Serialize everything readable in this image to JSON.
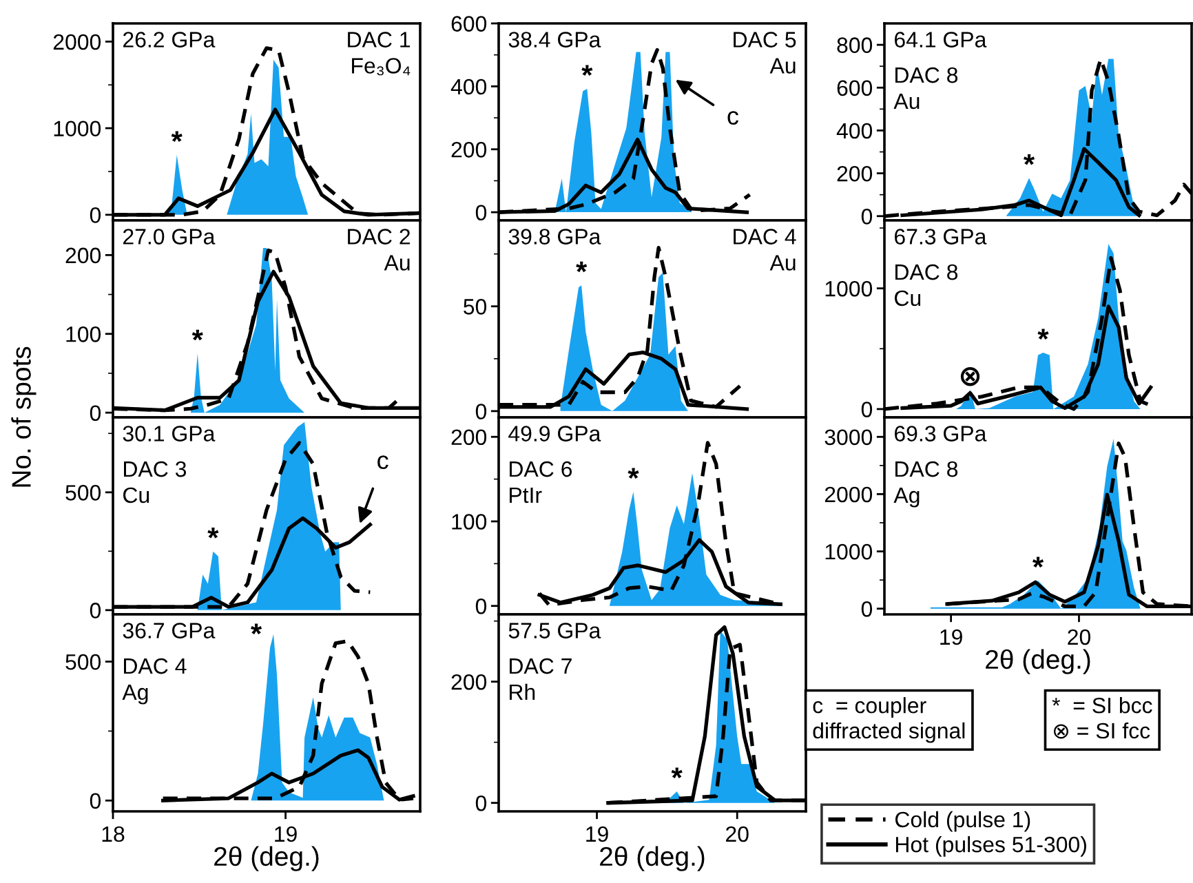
{
  "chart_data": [
    {
      "type": "line",
      "title": "26.2 GPa",
      "subtitle": "DAC 1\nFe₃O₄",
      "xlim": [
        18,
        19.78
      ],
      "xticks": [
        18,
        19
      ],
      "ylim": [
        -65,
        2210
      ],
      "yticks": [
        0,
        {
          "value": 500,
          "label": null
        },
        1000,
        {
          "value": 1500,
          "label": null
        },
        2000
      ],
      "tick_labels": "y",
      "annotations": [
        {
          "text": "*",
          "x": 18.37,
          "y": 690
        }
      ],
      "series": [
        {
          "type": "area",
          "color": "#18a3f0",
          "x": [
            18.3,
            18.34,
            18.37,
            18.4,
            18.43,
            18.66,
            18.72,
            18.78,
            18.8,
            18.82,
            18.86,
            18.9,
            18.93,
            18.96,
            18.99,
            19.03,
            19.06,
            19.1,
            19.13
          ],
          "values": [
            0,
            100,
            690,
            300,
            0,
            0,
            400,
            700,
            1170,
            600,
            640,
            560,
            1790,
            1700,
            900,
            900,
            445,
            200,
            0
          ]
        },
        {
          "type": "line",
          "line_style": "dashed",
          "color": "#000000",
          "x": [
            18.0,
            18.4,
            18.52,
            18.62,
            18.73,
            18.81,
            18.89,
            18.96,
            19.02,
            19.1,
            19.21,
            19.32,
            19.42,
            19.55,
            19.78
          ],
          "values": [
            0,
            0,
            40,
            230,
            875,
            1630,
            1925,
            1900,
            1415,
            660,
            365,
            180,
            15,
            0,
            20
          ]
        },
        {
          "type": "line",
          "line_style": "solid",
          "color": "#000000",
          "x": [
            18.0,
            18.3,
            18.38,
            18.49,
            18.68,
            18.81,
            18.94,
            19.08,
            19.21,
            19.34,
            19.48,
            19.78
          ],
          "values": [
            0,
            0,
            190,
            100,
            285,
            715,
            1215,
            715,
            230,
            40,
            0,
            20
          ]
        }
      ]
    },
    {
      "type": "line",
      "title": "27.0 GPa",
      "subtitle": "DAC 2\nAu",
      "ylabel": "No. of spots",
      "xlim": [
        18,
        19.78
      ],
      "xticks": [
        18,
        19
      ],
      "ylim": [
        -6,
        244
      ],
      "yticks": [
        0,
        {
          "value": 50,
          "label": null
        },
        100,
        {
          "value": 150,
          "label": null
        },
        200
      ],
      "tick_labels": "y",
      "annotations": [
        {
          "text": "*",
          "x": 18.49,
          "y": 75
        }
      ],
      "series": [
        {
          "type": "area",
          "color": "#18a3f0",
          "x": [
            18.45,
            18.47,
            18.49,
            18.51,
            18.53,
            18.62,
            18.74,
            18.83,
            18.87,
            18.89,
            18.92,
            18.94,
            18.95,
            18.97,
            19.02,
            19.11
          ],
          "values": [
            0,
            20,
            75,
            20,
            0,
            10,
            47,
            112,
            209,
            209,
            170,
            53,
            144,
            41,
            18,
            0
          ]
        },
        {
          "type": "line",
          "line_style": "dashed",
          "color": "#000000",
          "x": [
            18.0,
            18.3,
            18.45,
            18.55,
            18.67,
            18.78,
            18.84,
            18.9,
            18.94,
            19.0,
            19.08,
            19.21,
            19.4,
            19.6,
            19.66
          ],
          "values": [
            5,
            3,
            5,
            10,
            18,
            88,
            147,
            206,
            203,
            159,
            71,
            18,
            6,
            6,
            18
          ]
        },
        {
          "type": "line",
          "line_style": "solid",
          "color": "#000000",
          "x": [
            18.0,
            18.3,
            18.49,
            18.62,
            18.73,
            18.84,
            18.93,
            19.02,
            19.16,
            19.32,
            19.48,
            19.78
          ],
          "values": [
            6,
            3,
            19,
            19,
            41,
            141,
            179,
            147,
            59,
            12,
            6,
            6
          ]
        }
      ]
    },
    {
      "type": "line",
      "title": "30.1 GPa",
      "subtitle": "DAC 3\nCu",
      "xlim": [
        18,
        19.78
      ],
      "xticks": [
        18,
        19
      ],
      "ylim": [
        -18,
        818
      ],
      "yticks": [
        0,
        {
          "value": 250,
          "label": null
        },
        500,
        {
          "value": 750,
          "label": null
        }
      ],
      "tick_labels": "y",
      "annotations": [
        {
          "text": "*",
          "x": 18.58,
          "y": 249
        },
        {
          "text": "c",
          "x": 19.43,
          "y": 367
        }
      ],
      "series": [
        {
          "type": "area",
          "color": "#18a3f0",
          "x": [
            18.49,
            18.52,
            18.55,
            18.58,
            18.61,
            18.63,
            18.83,
            18.89,
            18.95,
            18.99,
            19.07,
            19.11,
            19.15,
            19.2,
            19.23,
            19.28,
            19.31,
            19.32
          ],
          "values": [
            0,
            151,
            112,
            249,
            228,
            0,
            33,
            229,
            425,
            700,
            778,
            798,
            523,
            327,
            249,
            288,
            288,
            0
          ]
        },
        {
          "type": "line",
          "line_style": "dashed",
          "color": "#000000",
          "x": [
            18.0,
            18.67,
            18.78,
            18.89,
            19.0,
            19.08,
            19.16,
            19.24,
            19.32,
            19.4,
            19.49
          ],
          "values": [
            14,
            14,
            112,
            425,
            640,
            710,
            620,
            327,
            141,
            82,
            76
          ]
        },
        {
          "type": "line",
          "line_style": "solid",
          "color": "#000000",
          "x": [
            18.0,
            18.46,
            18.57,
            18.67,
            18.78,
            18.92,
            19.02,
            19.1,
            19.18,
            19.29,
            19.37,
            19.49
          ],
          "values": [
            14,
            14,
            53,
            14,
            33,
            170,
            347,
            390,
            347,
            265,
            288,
            363
          ]
        }
      ]
    },
    {
      "type": "line",
      "title": "36.7 GPa",
      "subtitle": "DAC 4\nAg",
      "xlabel": "2θ (deg.)",
      "xlim": [
        18,
        19.78
      ],
      "xticks": [
        18,
        19
      ],
      "ylim": [
        -39,
        670
      ],
      "yticks": [
        0,
        {
          "value": 250,
          "label": null
        },
        500
      ],
      "annotations": [
        {
          "text": "*",
          "x": 18.93,
          "y": 599
        }
      ],
      "series": [
        {
          "type": "area",
          "color": "#18a3f0",
          "x": [
            18.8,
            18.84,
            18.87,
            18.91,
            18.93,
            18.95,
            18.98,
            19.02,
            19.1,
            19.11,
            19.16,
            19.19,
            19.21,
            19.25,
            19.29,
            19.34,
            19.39,
            19.43,
            19.49,
            19.53,
            19.57
          ],
          "values": [
            0,
            97,
            275,
            550,
            599,
            453,
            65,
            30,
            10,
            227,
            372,
            258,
            227,
            307,
            227,
            299,
            299,
            243,
            227,
            129,
            0
          ]
        },
        {
          "type": "line",
          "line_style": "dashed",
          "color": "#000000",
          "x": [
            18.29,
            18.94,
            19.08,
            19.16,
            19.21,
            19.29,
            19.36,
            19.42,
            19.48,
            19.53,
            19.58,
            19.66,
            19.74
          ],
          "values": [
            8,
            8,
            49,
            162,
            421,
            566,
            574,
            518,
            421,
            227,
            65,
            3,
            8
          ]
        },
        {
          "type": "line",
          "line_style": "solid",
          "color": "#000000",
          "x": [
            18.29,
            18.67,
            18.84,
            18.92,
            19.02,
            19.16,
            19.32,
            19.42,
            19.48,
            19.56,
            19.66,
            19.74
          ],
          "values": [
            0,
            8,
            65,
            97,
            65,
            97,
            162,
            181,
            154,
            49,
            3,
            16
          ]
        }
      ]
    },
    {
      "type": "line",
      "title": "38.4 GPa",
      "subtitle": "DAC 5\nAu",
      "xlim": [
        18.3,
        20.49
      ],
      "xticks": [
        19,
        20
      ],
      "ylim": [
        -26,
        600
      ],
      "yticks": [
        0,
        {
          "value": 100,
          "label": null
        },
        200,
        {
          "value": 300,
          "label": null
        },
        400,
        {
          "value": 500,
          "label": null
        },
        600
      ],
      "tick_labels": "y",
      "annotations": [
        {
          "text": "*",
          "x": 18.93,
          "y": 392
        },
        {
          "text": "c",
          "x": 19.56,
          "y": 421
        }
      ],
      "series": [
        {
          "type": "area",
          "color": "#18a3f0",
          "x": [
            18.7,
            18.75,
            18.78,
            18.84,
            18.9,
            18.93,
            18.96,
            18.99,
            19.03,
            19.21,
            19.28,
            19.31,
            19.34,
            19.39,
            19.46,
            19.49,
            19.52,
            19.55,
            19.59,
            19.68
          ],
          "values": [
            0,
            107,
            0,
            224,
            385,
            392,
            253,
            30,
            10,
            268,
            509,
            509,
            253,
            48,
            238,
            509,
            509,
            165,
            30,
            0
          ]
        },
        {
          "type": "line",
          "line_style": "dashed",
          "color": "#000000",
          "x": [
            18.3,
            18.8,
            18.93,
            19.13,
            19.26,
            19.33,
            19.39,
            19.43,
            19.47,
            19.52,
            19.59,
            19.68,
            19.95,
            20.09
          ],
          "values": [
            0,
            12,
            26,
            63,
            107,
            297,
            472,
            516,
            458,
            268,
            63,
            4,
            12,
            56
          ]
        },
        {
          "type": "line",
          "line_style": "solid",
          "color": "#000000",
          "x": [
            18.3,
            18.7,
            18.8,
            18.92,
            19.03,
            19.16,
            19.29,
            19.39,
            19.49,
            19.56,
            19.65,
            20.07
          ],
          "values": [
            0,
            4,
            26,
            85,
            63,
            121,
            231,
            136,
            77,
            63,
            12,
            0
          ]
        }
      ]
    },
    {
      "type": "line",
      "title": "39.8 GPa",
      "subtitle": "DAC 4\nAu",
      "xlim": [
        18.3,
        20.49
      ],
      "xticks": [
        19,
        20
      ],
      "ylim": [
        -3,
        91
      ],
      "yticks": [
        0,
        {
          "value": 25,
          "label": null
        },
        50,
        {
          "value": 75,
          "label": null
        }
      ],
      "tick_labels": "y",
      "annotations": [
        {
          "text": "*",
          "x": 18.89,
          "y": 60
        }
      ],
      "series": [
        {
          "type": "area",
          "color": "#18a3f0",
          "x": [
            18.74,
            18.8,
            18.87,
            18.89,
            18.92,
            18.97,
            19.03,
            19.11,
            19.2,
            19.29,
            19.38,
            19.44,
            19.47,
            19.51,
            19.56,
            19.6,
            19.65
          ],
          "values": [
            2,
            29,
            59,
            60,
            38,
            20,
            3,
            0,
            5,
            16,
            27,
            64,
            66,
            27,
            31,
            5,
            0
          ]
        },
        {
          "type": "line",
          "line_style": "dashed",
          "color": "#000000",
          "x": [
            18.3,
            18.8,
            18.9,
            19.0,
            19.2,
            19.29,
            19.36,
            19.41,
            19.44,
            19.49,
            19.59,
            19.67,
            19.85,
            20.02
          ],
          "values": [
            3,
            3,
            14,
            9,
            9,
            16,
            29,
            64,
            78,
            64,
            29,
            5,
            2,
            12
          ]
        },
        {
          "type": "line",
          "line_style": "solid",
          "color": "#000000",
          "x": [
            18.3,
            18.67,
            18.8,
            18.92,
            19.05,
            19.23,
            19.33,
            19.46,
            19.56,
            19.65,
            20.07
          ],
          "values": [
            2,
            2,
            7,
            20,
            13,
            27,
            28,
            25,
            20,
            3,
            1
          ]
        }
      ]
    },
    {
      "type": "line",
      "title": "49.9 GPa",
      "subtitle": "DAC 6\nPtIr",
      "xlim": [
        18.3,
        20.49
      ],
      "xticks": [
        19,
        20
      ],
      "ylim": [
        -10,
        223
      ],
      "yticks": [
        0,
        {
          "value": 50,
          "label": null
        },
        100,
        {
          "value": 150,
          "label": null
        },
        200
      ],
      "tick_labels": "y",
      "annotations": [
        {
          "text": "*",
          "x": 19.26,
          "y": 135
        }
      ],
      "series": [
        {
          "type": "area",
          "color": "#18a3f0",
          "x": [
            19.09,
            19.18,
            19.23,
            19.26,
            19.29,
            19.32,
            19.39,
            19.45,
            19.52,
            19.57,
            19.62,
            19.68,
            19.73,
            19.78,
            19.88,
            19.98,
            20.29,
            20.31
          ],
          "values": [
            0,
            64,
            114,
            135,
            92,
            43,
            7,
            20,
            92,
            119,
            97,
            157,
            103,
            37,
            13,
            7,
            4,
            0
          ]
        },
        {
          "type": "line",
          "line_style": "dashed",
          "color": "#000000",
          "x": [
            18.59,
            18.66,
            18.9,
            19.09,
            19.23,
            19.36,
            19.53,
            19.62,
            19.72,
            19.79,
            19.85,
            19.92,
            19.98,
            20.31
          ],
          "values": [
            15,
            1,
            7,
            10,
            21,
            23,
            18,
            48,
            119,
            193,
            168,
            75,
            15,
            2
          ]
        },
        {
          "type": "line",
          "line_style": "solid",
          "color": "#000000",
          "x": [
            18.59,
            18.74,
            18.97,
            19.09,
            19.19,
            19.29,
            19.49,
            19.62,
            19.73,
            19.82,
            19.92,
            20.08,
            20.31
          ],
          "values": [
            13,
            4,
            13,
            21,
            45,
            48,
            40,
            54,
            78,
            64,
            23,
            4,
            2
          ]
        }
      ]
    },
    {
      "type": "line",
      "title": "57.5 GPa",
      "subtitle": "DAC 7\nRh",
      "xlabel": "2θ (deg.)",
      "xlim": [
        18.3,
        20.49
      ],
      "xticks": [
        19,
        20
      ],
      "ylim": [
        -14,
        311
      ],
      "yticks": [
        0,
        {
          "value": 100,
          "label": null
        },
        200,
        {
          "value": 300,
          "label": null
        }
      ],
      "annotations": [
        {
          "text": "*",
          "x": 19.57,
          "y": 19
        }
      ],
      "series": [
        {
          "type": "area",
          "color": "#18a3f0",
          "x": [
            19.17,
            19.52,
            19.57,
            19.62,
            19.8,
            19.85,
            19.88,
            19.93,
            20.0,
            20.03,
            20.09,
            20.14,
            20.27
          ],
          "values": [
            0,
            8,
            19,
            0,
            5,
            95,
            284,
            269,
            110,
            64,
            64,
            19,
            0
          ]
        },
        {
          "type": "line",
          "line_style": "dashed",
          "color": "#000000",
          "x": [
            19.08,
            19.85,
            19.9,
            19.95,
            20.02,
            20.08,
            20.14,
            20.24,
            20.49
          ],
          "values": [
            0,
            11,
            110,
            254,
            261,
            148,
            34,
            4,
            4
          ]
        },
        {
          "type": "line",
          "line_style": "solid",
          "color": "#000000",
          "x": [
            19.08,
            19.68,
            19.77,
            19.85,
            19.91,
            19.97,
            20.05,
            20.14,
            20.27,
            20.49
          ],
          "values": [
            0,
            4,
            110,
            277,
            290,
            246,
            110,
            27,
            4,
            4
          ]
        }
      ]
    },
    {
      "type": "line",
      "title": "64.1 GPa",
      "subtitle": "DAC 8\nAu",
      "xlim": [
        18.48,
        20.88
      ],
      "xticks": [
        19,
        20
      ],
      "ylim": [
        -20,
        900
      ],
      "yticks": [
        0,
        {
          "value": 100,
          "label": null
        },
        200,
        {
          "value": 300,
          "label": null
        },
        400,
        {
          "value": 500,
          "label": null
        },
        600,
        {
          "value": 700,
          "label": null
        },
        800
      ],
      "tick_labels": "y",
      "annotations": [
        {
          "text": "*",
          "x": 19.61,
          "y": 178
        }
      ],
      "series": [
        {
          "type": "area",
          "color": "#18a3f0",
          "x": [
            19.43,
            19.54,
            19.61,
            19.65,
            19.72,
            19.79,
            19.86,
            19.93,
            20.0,
            20.05,
            20.1,
            20.14,
            20.18,
            20.23,
            20.27,
            20.31,
            20.36,
            20.43,
            20.47
          ],
          "values": [
            0,
            84,
            178,
            126,
            21,
            105,
            84,
            168,
            587,
            608,
            461,
            713,
            566,
            734,
            734,
            377,
            251,
            42,
            0
          ]
        },
        {
          "type": "line",
          "line_style": "dashed",
          "color": "#000000",
          "x": [
            18.48,
            18.89,
            19.43,
            19.61,
            19.82,
            19.93,
            20.05,
            20.1,
            20.17,
            20.23,
            20.31,
            20.39,
            20.47,
            20.61,
            20.75,
            20.82,
            20.88
          ],
          "values": [
            0,
            21,
            42,
            52,
            21,
            4,
            168,
            587,
            734,
            629,
            377,
            84,
            21,
            4,
            73,
            147,
            105
          ]
        },
        {
          "type": "line",
          "line_style": "solid",
          "color": "#000000",
          "x": [
            18.62,
            19.24,
            19.5,
            19.61,
            19.72,
            19.86,
            19.96,
            20.04,
            20.15,
            20.29,
            20.39,
            20.47
          ],
          "values": [
            4,
            31,
            52,
            73,
            42,
            4,
            168,
            314,
            251,
            168,
            42,
            4
          ]
        }
      ]
    },
    {
      "type": "line",
      "title": "67.3 GPa",
      "subtitle": "DAC 8\nCu",
      "xlim": [
        18.48,
        20.88
      ],
      "xticks": [
        19,
        20
      ],
      "ylim": [
        -69,
        1563
      ],
      "yticks": [
        0,
        {
          "value": 500,
          "label": null
        },
        1000,
        {
          "value": 1500,
          "label": null
        }
      ],
      "tick_labels": "y",
      "annotations": [
        {
          "text": "*",
          "x": 19.72,
          "y": 467
        },
        {
          "text": "⊗",
          "x": 19.15,
          "y": 161
        }
      ],
      "series": [
        {
          "type": "area",
          "color": "#18a3f0",
          "x": [
            19.04,
            19.08,
            19.15,
            19.19,
            19.3,
            19.5,
            19.64,
            19.68,
            19.72,
            19.77,
            19.8,
            19.96,
            20.07,
            20.15,
            20.2,
            20.23,
            20.27,
            20.31,
            20.36,
            20.43,
            20.48
          ],
          "values": [
            0,
            27,
            161,
            0,
            8,
            103,
            142,
            448,
            467,
            448,
            0,
            103,
            372,
            755,
            1137,
            1367,
            1290,
            755,
            372,
            65,
            0
          ]
        },
        {
          "type": "line",
          "line_style": "dashed",
          "color": "#000000",
          "x": [
            18.48,
            18.89,
            19.24,
            19.53,
            19.7,
            19.86,
            19.96,
            20.07,
            20.18,
            20.25,
            20.32,
            20.39,
            20.48,
            20.56
          ],
          "values": [
            0,
            46,
            103,
            180,
            180,
            46,
            0,
            142,
            755,
            1252,
            984,
            448,
            65,
            30
          ]
        },
        {
          "type": "line",
          "line_style": "solid",
          "color": "#000000",
          "x": [
            18.62,
            19.0,
            19.08,
            19.15,
            19.21,
            19.43,
            19.57,
            19.7,
            19.79,
            19.89,
            20.04,
            20.15,
            20.23,
            20.31,
            20.37,
            20.47,
            20.56
          ],
          "values": [
            8,
            27,
            65,
            134,
            46,
            103,
            142,
            180,
            65,
            8,
            103,
            372,
            850,
            678,
            257,
            46,
            180
          ]
        }
      ]
    },
    {
      "type": "line",
      "title": "69.3 GPa",
      "subtitle": "DAC 8\nAg",
      "xlabel": "2θ (deg.)",
      "xlim": [
        18.48,
        20.88
      ],
      "xticks": [
        19,
        20
      ],
      "ylim": [
        -100,
        3340
      ],
      "yticks": [
        0,
        {
          "value": 500,
          "label": null
        },
        1000,
        {
          "value": 1500,
          "label": null
        },
        2000,
        {
          "value": 2500,
          "label": null
        },
        3000
      ],
      "legend": "bottom",
      "annotations": [
        "c  = coupler\ndiffracted signal",
        "*  = SI bcc\n⊗ = SI fcc",
        {
          "text": "*",
          "x": 19.68,
          "y": 488
        }
      ],
      "series": [
        {
          "type": "area",
          "color": "#18a3f0",
          "x": [
            18.84,
            19.4,
            19.46,
            19.57,
            19.68,
            19.77,
            19.86,
            19.96,
            20.07,
            20.16,
            20.22,
            20.27,
            20.31,
            20.34,
            20.37,
            20.43,
            20.48
          ],
          "values": [
            24,
            24,
            81,
            244,
            488,
            285,
            0,
            203,
            528,
            1423,
            2480,
            2967,
            1992,
            1179,
            1016,
            366,
            0
          ]
        },
        {
          "type": "line",
          "name": "Cold (pulse 1)",
          "line_style": "dashed",
          "color": "#000000",
          "x": [
            18.97,
            19.53,
            19.63,
            19.73,
            19.89,
            20.04,
            20.13,
            20.21,
            20.31,
            20.36,
            20.43,
            20.5,
            20.61,
            20.88
          ],
          "values": [
            81,
            163,
            268,
            203,
            41,
            41,
            285,
            1423,
            2886,
            2642,
            1423,
            285,
            81,
            41
          ]
        },
        {
          "type": "line",
          "name": "Hot (pulses 51-300)",
          "line_style": "solid",
          "color": "#000000",
          "x": [
            18.97,
            19.32,
            19.53,
            19.66,
            19.77,
            19.89,
            20.04,
            20.15,
            20.22,
            20.31,
            20.39,
            20.53,
            20.88
          ],
          "values": [
            81,
            138,
            285,
            463,
            244,
            122,
            285,
            1098,
            1992,
            1179,
            244,
            41,
            41
          ]
        }
      ]
    }
  ]
}
